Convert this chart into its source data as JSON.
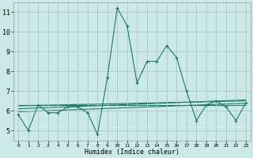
{
  "xlabel": "Humidex (Indice chaleur)",
  "bg_color": "#cce8e8",
  "grid_color": "#aac8c8",
  "line_color": "#1a7a6a",
  "xlim": [
    -0.5,
    23.5
  ],
  "ylim": [
    4.5,
    11.5
  ],
  "xticks": [
    0,
    1,
    2,
    3,
    4,
    5,
    6,
    7,
    8,
    9,
    10,
    11,
    12,
    13,
    14,
    15,
    16,
    17,
    18,
    19,
    20,
    21,
    22,
    23
  ],
  "yticks": [
    5,
    6,
    7,
    8,
    9,
    10,
    11
  ],
  "main_x": [
    0,
    1,
    2,
    3,
    4,
    5,
    6,
    7,
    8,
    9,
    10,
    11,
    12,
    13,
    14,
    15,
    16,
    17,
    18,
    19,
    20,
    21,
    22,
    23
  ],
  "main_y": [
    5.8,
    5.0,
    6.3,
    5.9,
    5.9,
    6.2,
    6.2,
    5.9,
    4.8,
    7.7,
    11.2,
    10.3,
    7.4,
    8.5,
    8.5,
    9.3,
    8.7,
    7.0,
    5.5,
    6.3,
    6.5,
    6.2,
    5.5,
    6.4
  ],
  "flat_lines": [
    {
      "x": [
        0,
        23
      ],
      "y": [
        6.25,
        6.5
      ]
    },
    {
      "x": [
        0,
        23
      ],
      "y": [
        6.28,
        6.28
      ]
    },
    {
      "x": [
        0,
        23
      ],
      "y": [
        6.1,
        6.55
      ]
    },
    {
      "x": [
        0,
        23
      ],
      "y": [
        5.95,
        6.38
      ]
    }
  ]
}
